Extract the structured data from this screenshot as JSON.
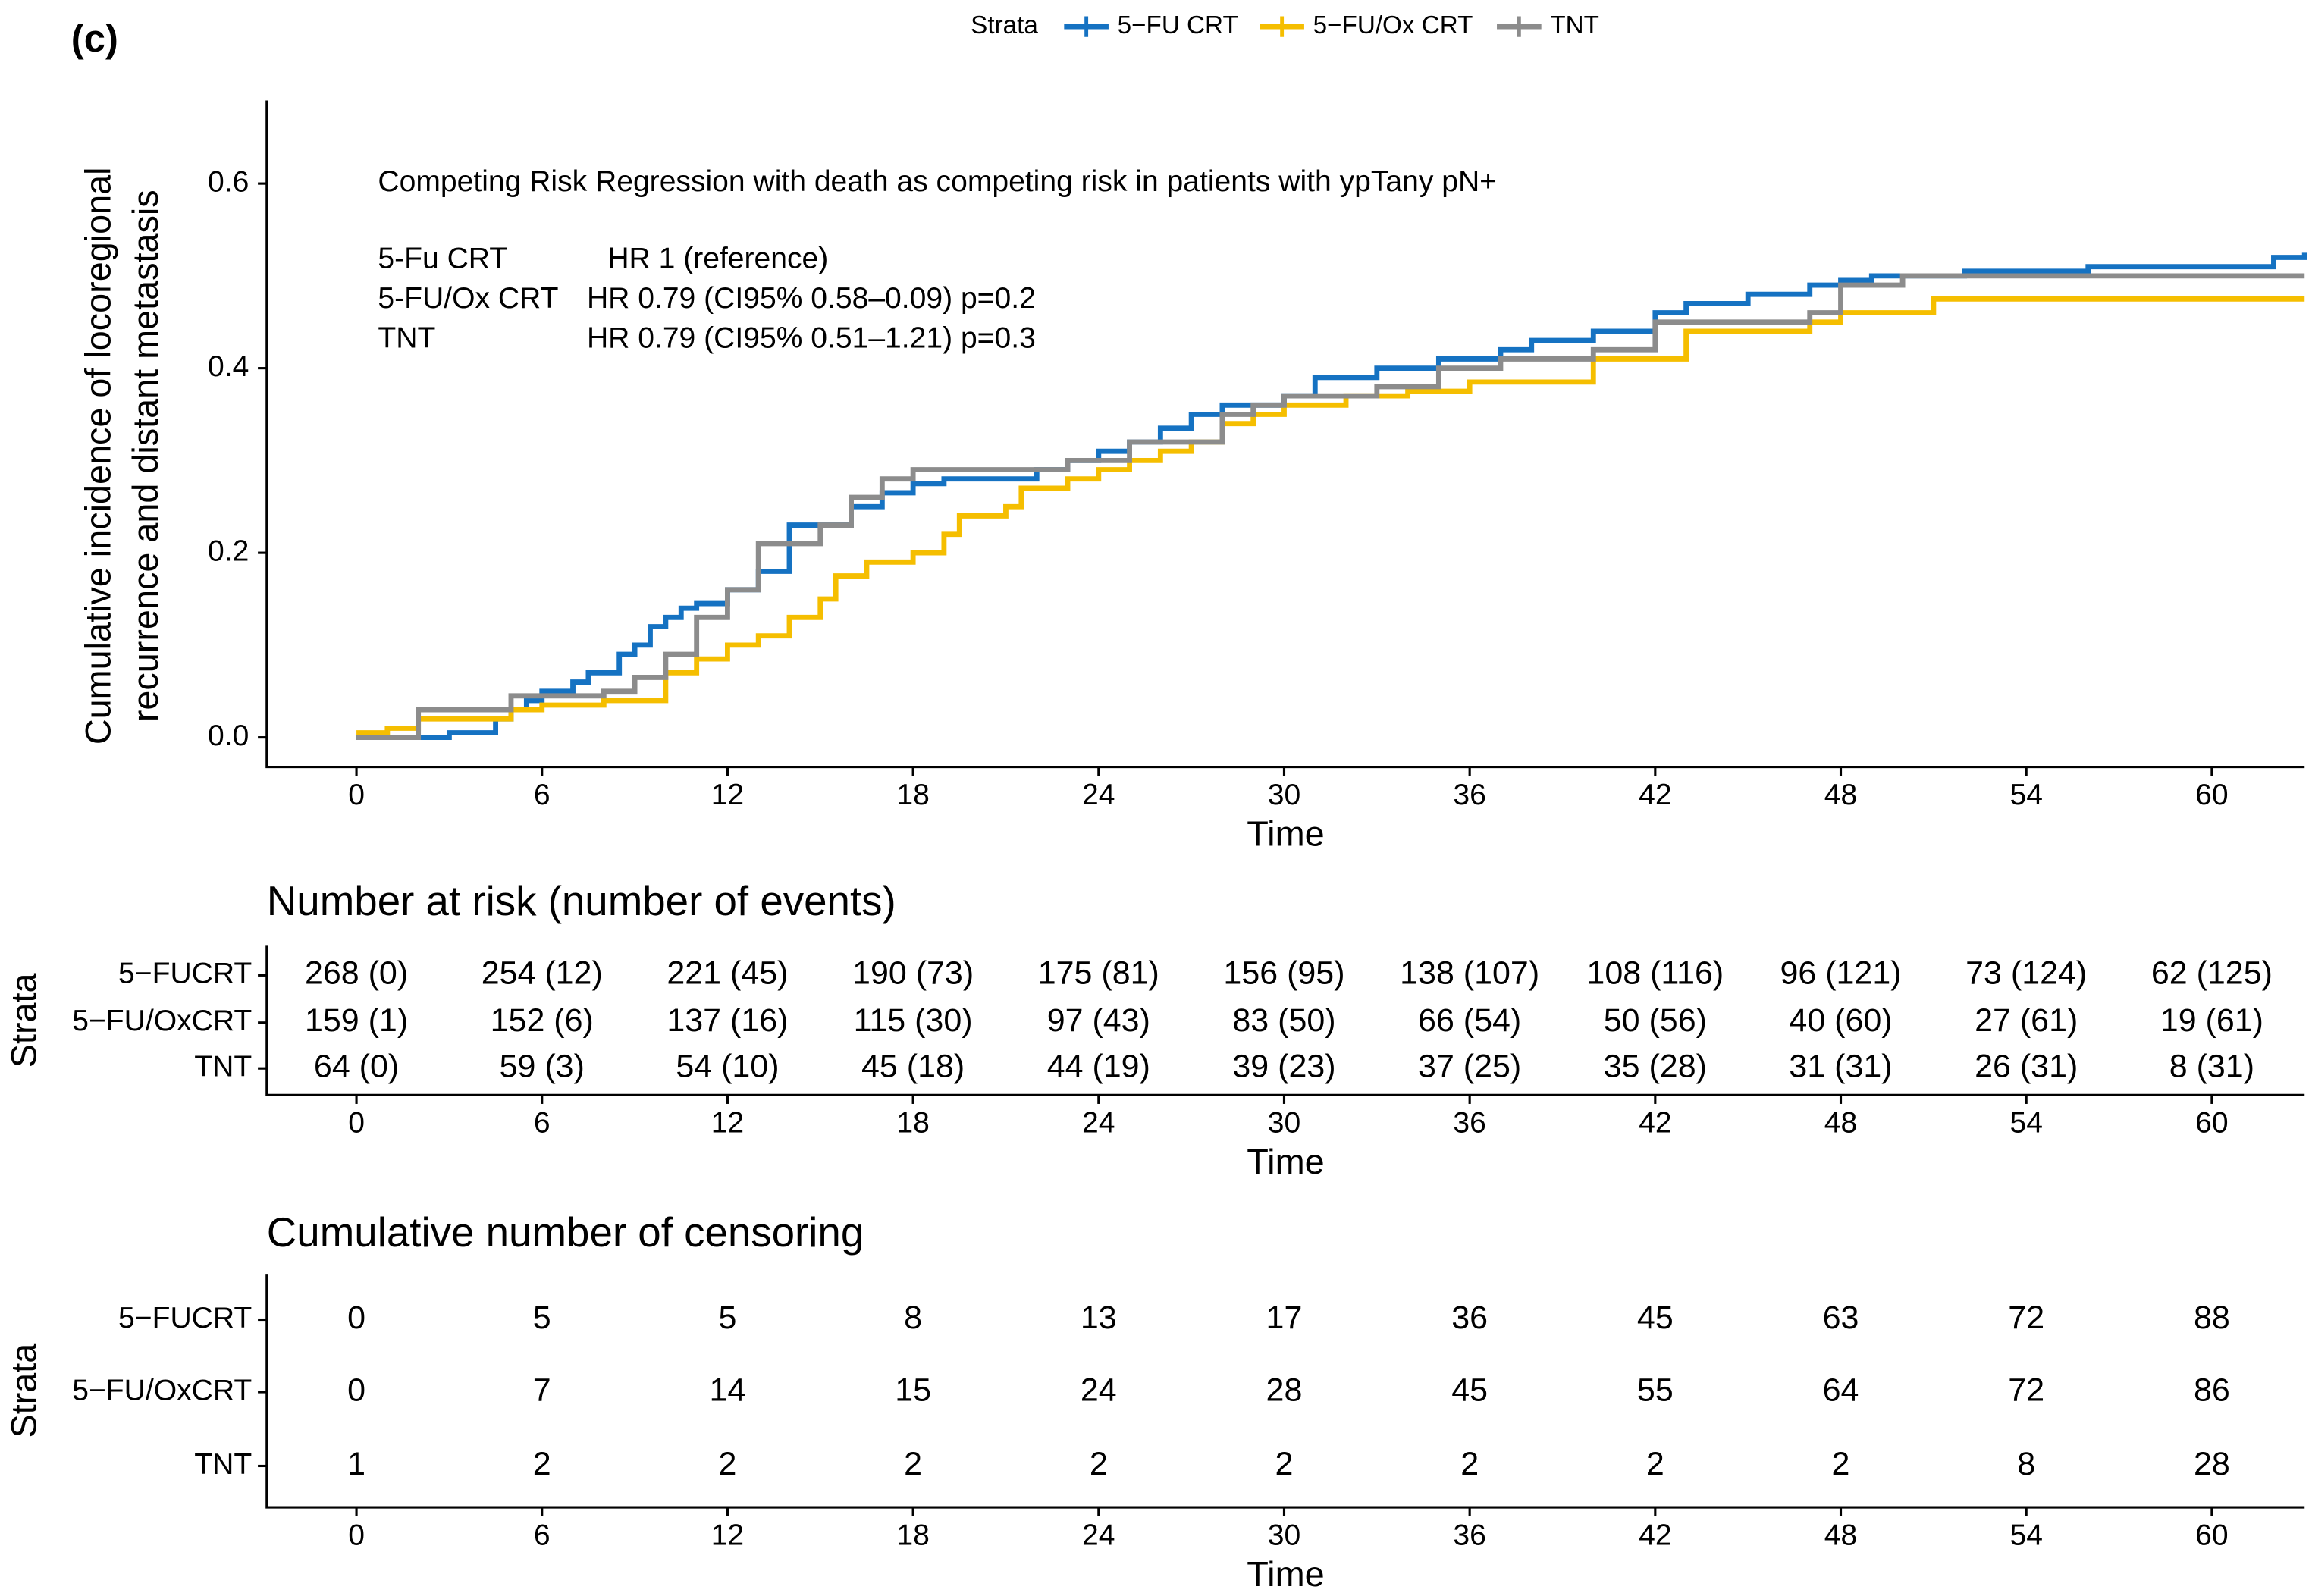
{
  "panel_label": "(c)",
  "chart_data": [
    {
      "type": "step",
      "legend_title": "Strata",
      "ylabel": [
        "Cumulative incidence of locoregional",
        "recurrence and distant metastasis"
      ],
      "xlabel": "Time",
      "annotation": {
        "title": "Competing Risk Regression with death as competing risk in patients with ypTany pN+",
        "rows": [
          [
            "5-Fu CRT",
            "HR 1 (reference)"
          ],
          [
            "5-FU/Ox CRT",
            "HR 0.79 (CI95% 0.58–0.09) p=0.2"
          ],
          [
            "TNT",
            "HR 0.79 (CI95% 0.51–1.21) p=0.3"
          ]
        ]
      },
      "xlim": [
        -2.9,
        63
      ],
      "xticks": [
        0,
        6,
        12,
        18,
        24,
        30,
        36,
        42,
        48,
        54,
        60
      ],
      "ylim": [
        -0.032,
        0.69
      ],
      "yticks": [
        {
          "value": 0,
          "label": "0.0"
        },
        0.2,
        0.4,
        0.6
      ],
      "series": [
        {
          "name": "5−FU CRT",
          "color": "#1572c2",
          "x": [
            0,
            3,
            4.5,
            5,
            5.5,
            6,
            7,
            7.5,
            8.5,
            9,
            9.5,
            10,
            10.5,
            11,
            12,
            13,
            14,
            16,
            17,
            18,
            19,
            22,
            23,
            24,
            25,
            26,
            27,
            28,
            30,
            31,
            33,
            35,
            37,
            38,
            40,
            42,
            43,
            45,
            47,
            48,
            49,
            52,
            56,
            62,
            63
          ],
          "values": [
            0,
            0.005,
            0.02,
            0.03,
            0.04,
            0.05,
            0.06,
            0.07,
            0.09,
            0.1,
            0.12,
            0.13,
            0.14,
            0.145,
            0.16,
            0.18,
            0.23,
            0.25,
            0.265,
            0.275,
            0.28,
            0.29,
            0.3,
            0.31,
            0.32,
            0.335,
            0.35,
            0.36,
            0.37,
            0.39,
            0.4,
            0.41,
            0.42,
            0.43,
            0.44,
            0.46,
            0.47,
            0.48,
            0.49,
            0.495,
            0.5,
            0.505,
            0.51,
            0.52,
            0.525
          ]
        },
        {
          "name": "5−FU/Ox CRT",
          "color": "#f5be00",
          "x": [
            0,
            1,
            2,
            5,
            6,
            8,
            10,
            11,
            12,
            13,
            14,
            15,
            15.5,
            16.5,
            18,
            19,
            19.5,
            21,
            21.5,
            23,
            24,
            25,
            26,
            27,
            28,
            29,
            30,
            32,
            34,
            36,
            40,
            43,
            47,
            48,
            51,
            63
          ],
          "values": [
            0.005,
            0.01,
            0.02,
            0.03,
            0.035,
            0.04,
            0.07,
            0.085,
            0.1,
            0.11,
            0.13,
            0.15,
            0.175,
            0.19,
            0.2,
            0.22,
            0.24,
            0.25,
            0.27,
            0.28,
            0.29,
            0.3,
            0.31,
            0.32,
            0.34,
            0.35,
            0.36,
            0.37,
            0.375,
            0.385,
            0.41,
            0.44,
            0.45,
            0.46,
            0.475,
            0.475
          ]
        },
        {
          "name": "TNT",
          "color": "#8c8c8c",
          "x": [
            0,
            2,
            5,
            8,
            9,
            10,
            11,
            12,
            13,
            15,
            16,
            17,
            18,
            23,
            25,
            28,
            29,
            30,
            33,
            35,
            37,
            40,
            42,
            47,
            48,
            50,
            63
          ],
          "values": [
            0,
            0.03,
            0.045,
            0.05,
            0.065,
            0.09,
            0.13,
            0.16,
            0.21,
            0.23,
            0.26,
            0.28,
            0.29,
            0.3,
            0.32,
            0.35,
            0.36,
            0.37,
            0.38,
            0.4,
            0.41,
            0.42,
            0.45,
            0.46,
            0.49,
            0.5,
            0.5
          ]
        }
      ]
    },
    {
      "type": "table",
      "title": "Number at risk (number of events)",
      "ylabel": "Strata",
      "xlabel": "Time",
      "xlim": [
        -2.9,
        63
      ],
      "xticks": [
        0,
        6,
        12,
        18,
        24,
        30,
        36,
        42,
        48,
        54,
        60
      ],
      "row_labels": [
        "5−FUCRT",
        "5−FU/OxCRT",
        "TNT"
      ],
      "row_colors": [
        "#1572c2",
        "#f5be00",
        "#8c8c8c"
      ],
      "rows": [
        [
          "268 (0)",
          "254 (12)",
          "221 (45)",
          "190 (73)",
          "175 (81)",
          "156 (95)",
          "138 (107)",
          "108 (116)",
          "96 (121)",
          "73 (124)",
          "62 (125)"
        ],
        [
          "159 (1)",
          "152 (6)",
          "137 (16)",
          "115 (30)",
          "97 (43)",
          "83 (50)",
          "66 (54)",
          "50 (56)",
          "40 (60)",
          "27 (61)",
          "19 (61)"
        ],
        [
          "64 (0)",
          "59 (3)",
          "54 (10)",
          "45 (18)",
          "44 (19)",
          "39 (23)",
          "37 (25)",
          "35 (28)",
          "31 (31)",
          "26 (31)",
          "8 (31)"
        ]
      ]
    },
    {
      "type": "table",
      "title": "Cumulative number of censoring",
      "ylabel": "Strata",
      "xlabel": "Time",
      "xlim": [
        -2.9,
        63
      ],
      "xticks": [
        0,
        6,
        12,
        18,
        24,
        30,
        36,
        42,
        48,
        54,
        60
      ],
      "row_labels": [
        "5−FUCRT",
        "5−FU/OxCRT",
        "TNT"
      ],
      "row_colors": [
        "#1572c2",
        "#f5be00",
        "#8c8c8c"
      ],
      "rows": [
        [
          0,
          5,
          5,
          8,
          13,
          17,
          36,
          45,
          63,
          72,
          88
        ],
        [
          0,
          7,
          14,
          15,
          24,
          28,
          45,
          55,
          64,
          72,
          86
        ],
        [
          1,
          2,
          2,
          2,
          2,
          2,
          2,
          2,
          2,
          8,
          28
        ]
      ]
    }
  ]
}
